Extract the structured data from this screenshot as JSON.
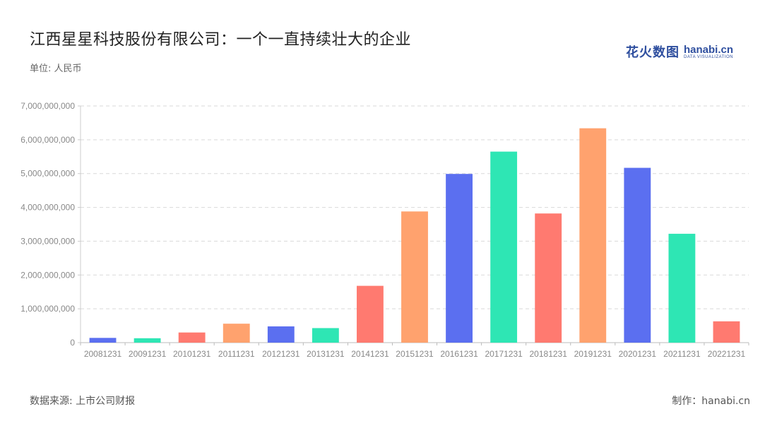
{
  "header": {
    "title": "江西星星科技股份有限公司：一个一直持续壮大的企业",
    "unit": "单位: 人民币"
  },
  "logo": {
    "cn_text": "花火数图",
    "en_text": "hanabi.cn",
    "en_sub": "DATA VISUALIZATION",
    "color": "#2f4f9f"
  },
  "footer": {
    "source": "数据来源: 上市公司财报",
    "credit": "制作：hanabi.cn"
  },
  "chart_data": {
    "type": "bar",
    "title": "",
    "xlabel": "",
    "ylabel": "",
    "categories": [
      "20081231",
      "20091231",
      "20101231",
      "20111231",
      "20121231",
      "20131231",
      "20141231",
      "20151231",
      "20161231",
      "20171231",
      "20181231",
      "20191231",
      "20201231",
      "20211231",
      "20221231"
    ],
    "values": [
      140000000,
      130000000,
      300000000,
      560000000,
      480000000,
      430000000,
      1680000000,
      3880000000,
      4990000000,
      5650000000,
      3820000000,
      6340000000,
      5170000000,
      3220000000,
      630000000
    ],
    "colors": [
      "#5b6ff0",
      "#2ee6b4",
      "#ff7a70",
      "#ffa26e",
      "#5b6ff0",
      "#2ee6b4",
      "#ff7a70",
      "#ffa26e",
      "#5b6ff0",
      "#2ee6b4",
      "#ff7a70",
      "#ffa26e",
      "#5b6ff0",
      "#2ee6b4",
      "#ff7a70"
    ],
    "ylim": [
      0,
      7000000000
    ],
    "yticks": [
      0,
      1000000000,
      2000000000,
      3000000000,
      4000000000,
      5000000000,
      6000000000,
      7000000000
    ],
    "ytick_labels": [
      "0",
      "1,000,000,000",
      "2,000,000,000",
      "3,000,000,000",
      "4,000,000,000",
      "5,000,000,000",
      "6,000,000,000",
      "7,000,000,000"
    ],
    "grid": true,
    "legend": "none"
  }
}
